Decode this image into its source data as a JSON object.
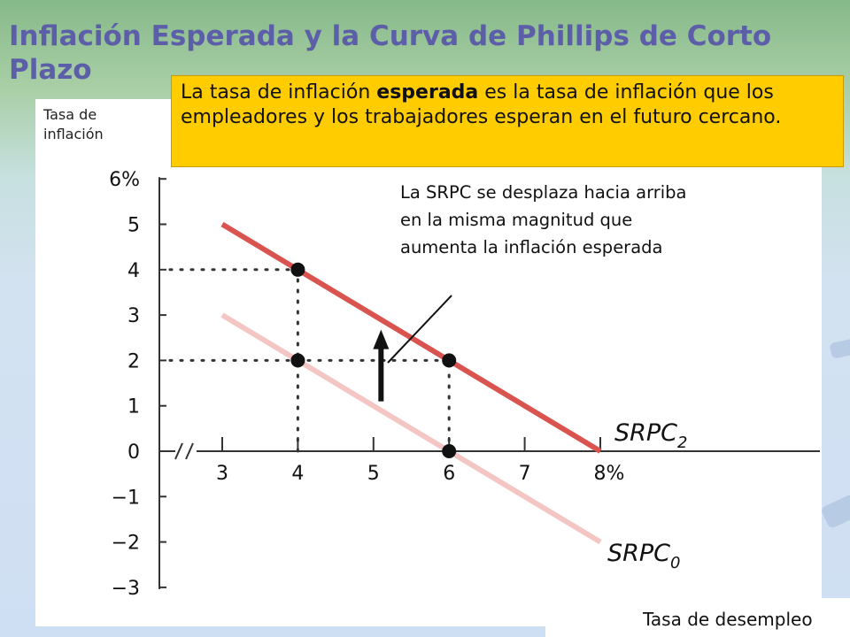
{
  "slide": {
    "title": "Inflación Esperada y la Curva de Phillips de Corto Plazo"
  },
  "callout": {
    "prefix": "La tasa de inflación ",
    "emphasis": "esperada",
    "suffix": " es la tasa de inflación que los empleadores y los trabajadores esperan en el futuro cercano."
  },
  "annotation": "La SRPC se desplaza hacia arriba en la misma magnitud que aumenta la inflación esperada",
  "chart_data": {
    "type": "line",
    "ylabel": "Tasa de inflación",
    "xlabel": "Tasa de desempleo",
    "x_ticks": [
      "3",
      "4",
      "5",
      "6",
      "7",
      "8%"
    ],
    "y_ticks": [
      "6%",
      "5",
      "4",
      "3",
      "2",
      "1",
      "0",
      "−1",
      "−2",
      "−3"
    ],
    "xlim": [
      2,
      8.5
    ],
    "ylim": [
      -3,
      6
    ],
    "axis_break": true,
    "series": [
      {
        "name": "SRPC",
        "subscript": "2",
        "color": "#d9534f",
        "x": [
          3,
          8
        ],
        "y": [
          5,
          0
        ]
      },
      {
        "name": "SRPC",
        "subscript": "0",
        "color": "#f3c6c4",
        "x": [
          3,
          8
        ],
        "y": [
          3,
          -2
        ]
      }
    ],
    "points": [
      {
        "x": 4,
        "y": 4
      },
      {
        "x": 4,
        "y": 2
      },
      {
        "x": 6,
        "y": 2
      },
      {
        "x": 6,
        "y": 0
      }
    ],
    "guides": [
      {
        "from": [
          2,
          4
        ],
        "to": [
          4,
          4
        ]
      },
      {
        "from": [
          2,
          2
        ],
        "to": [
          6,
          2
        ]
      },
      {
        "from": [
          4,
          0
        ],
        "to": [
          4,
          4
        ]
      },
      {
        "from": [
          6,
          0
        ],
        "to": [
          6,
          2
        ]
      }
    ],
    "shift_arrow": {
      "x": 5.1,
      "y_from": 1.1,
      "y_to": 2.6
    }
  }
}
